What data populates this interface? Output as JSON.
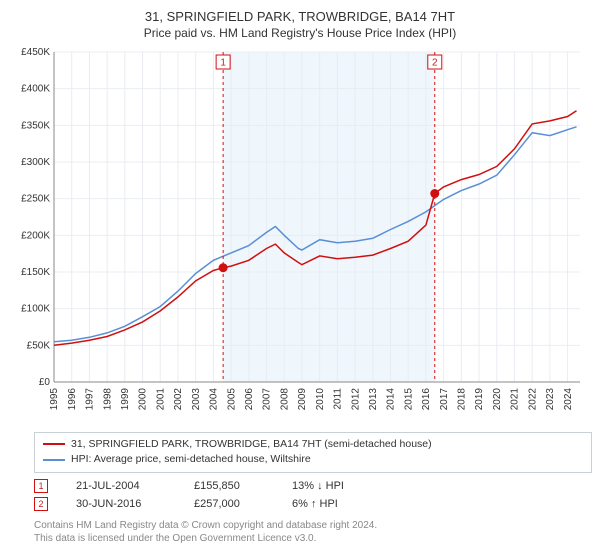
{
  "title": "31, SPRINGFIELD PARK, TROWBRIDGE, BA14 7HT",
  "subtitle": "Price paid vs. HM Land Registry's House Price Index (HPI)",
  "chart": {
    "type": "line",
    "background_color": "#ffffff",
    "grid_color": "#e9edf2",
    "band_color": "#eff6fc",
    "band_start_year": 2004.55,
    "band_end_year": 2016.5,
    "xlim": [
      1995,
      2024.7
    ],
    "ylim": [
      0,
      450000
    ],
    "ytick_step": 50000,
    "ytick_labels": [
      "£0",
      "£50K",
      "£100K",
      "£150K",
      "£200K",
      "£250K",
      "£300K",
      "£350K",
      "£400K",
      "£450K"
    ],
    "xtick_years": [
      1995,
      1996,
      1997,
      1998,
      1999,
      2000,
      2001,
      2002,
      2003,
      2004,
      2005,
      2006,
      2007,
      2008,
      2009,
      2010,
      2011,
      2012,
      2013,
      2014,
      2015,
      2016,
      2017,
      2018,
      2019,
      2020,
      2021,
      2022,
      2023,
      2024
    ],
    "series": [
      {
        "id": "property",
        "label": "31, SPRINGFIELD PARK, TROWBRIDGE, BA14 7HT (semi-detached house)",
        "color": "#d01010",
        "line_width": 1.5,
        "points": [
          [
            1995,
            50000
          ],
          [
            1996,
            53000
          ],
          [
            1997,
            57000
          ],
          [
            1998,
            62000
          ],
          [
            1999,
            71000
          ],
          [
            2000,
            82000
          ],
          [
            2001,
            97000
          ],
          [
            2002,
            116000
          ],
          [
            2003,
            138000
          ],
          [
            2004,
            152000
          ],
          [
            2004.55,
            155850
          ],
          [
            2005,
            158000
          ],
          [
            2006,
            166000
          ],
          [
            2007,
            182000
          ],
          [
            2007.5,
            188000
          ],
          [
            2008,
            176000
          ],
          [
            2008.8,
            163000
          ],
          [
            2009,
            160000
          ],
          [
            2010,
            172000
          ],
          [
            2011,
            168000
          ],
          [
            2012,
            170000
          ],
          [
            2013,
            173000
          ],
          [
            2014,
            182000
          ],
          [
            2015,
            192000
          ],
          [
            2016,
            214000
          ],
          [
            2016.5,
            257000
          ],
          [
            2017,
            266000
          ],
          [
            2018,
            276000
          ],
          [
            2019,
            283000
          ],
          [
            2020,
            294000
          ],
          [
            2021,
            318000
          ],
          [
            2022,
            352000
          ],
          [
            2023,
            356000
          ],
          [
            2024,
            362000
          ],
          [
            2024.5,
            370000
          ]
        ]
      },
      {
        "id": "hpi",
        "label": "HPI: Average price, semi-detached house, Wiltshire",
        "color": "#5a8fd6",
        "line_width": 1.5,
        "points": [
          [
            1995,
            55000
          ],
          [
            1996,
            57000
          ],
          [
            1997,
            61000
          ],
          [
            1998,
            67000
          ],
          [
            1999,
            76000
          ],
          [
            2000,
            89000
          ],
          [
            2001,
            103000
          ],
          [
            2002,
            124000
          ],
          [
            2003,
            148000
          ],
          [
            2004,
            166000
          ],
          [
            2005,
            176000
          ],
          [
            2006,
            186000
          ],
          [
            2007,
            204000
          ],
          [
            2007.5,
            212000
          ],
          [
            2008,
            200000
          ],
          [
            2008.8,
            182000
          ],
          [
            2009,
            180000
          ],
          [
            2010,
            194000
          ],
          [
            2011,
            190000
          ],
          [
            2012,
            192000
          ],
          [
            2013,
            196000
          ],
          [
            2014,
            208000
          ],
          [
            2015,
            219000
          ],
          [
            2016,
            232000
          ],
          [
            2017,
            249000
          ],
          [
            2018,
            261000
          ],
          [
            2019,
            270000
          ],
          [
            2020,
            282000
          ],
          [
            2021,
            310000
          ],
          [
            2022,
            340000
          ],
          [
            2023,
            336000
          ],
          [
            2024,
            344000
          ],
          [
            2024.5,
            348000
          ]
        ]
      }
    ],
    "markers": [
      {
        "n": 1,
        "year": 2004.55,
        "price": 155850
      },
      {
        "n": 2,
        "year": 2016.5,
        "price": 257000
      }
    ]
  },
  "legend": {
    "series1": "31, SPRINGFIELD PARK, TROWBRIDGE, BA14 7HT (semi-detached house)",
    "series2": "HPI: Average price, semi-detached house, Wiltshire"
  },
  "sales": [
    {
      "n": "1",
      "date": "21-JUL-2004",
      "price": "£155,850",
      "delta": "13% ↓ HPI"
    },
    {
      "n": "2",
      "date": "30-JUN-2016",
      "price": "£257,000",
      "delta": "6% ↑ HPI"
    }
  ],
  "footnote_line1": "Contains HM Land Registry data © Crown copyright and database right 2024.",
  "footnote_line2": "This data is licensed under the Open Government Licence v3.0.",
  "colors": {
    "red": "#d01010",
    "blue": "#5a8fd6",
    "marker_border": "#d01010"
  }
}
